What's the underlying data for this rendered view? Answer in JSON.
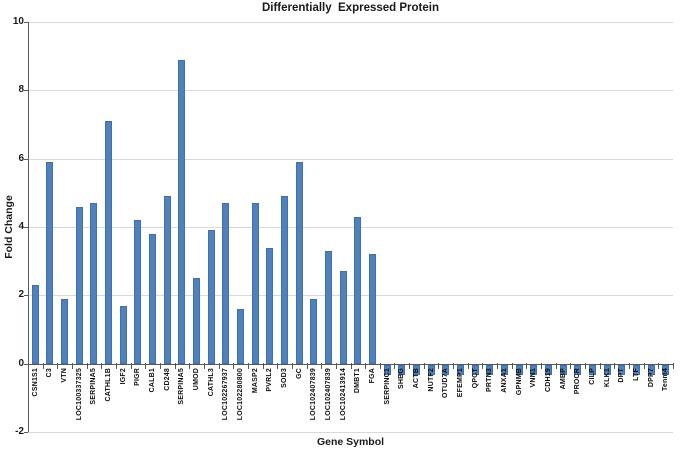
{
  "title": "Differentially  Expressed Protein",
  "colors": {
    "bar": "#4f81bd",
    "gridline": "#d9d9d9",
    "axis": "#595959",
    "text": "#1a1a1a"
  },
  "chart_data": {
    "type": "bar",
    "title": "Differentially  Expressed Protein",
    "xlabel": "Gene Symbol",
    "ylabel": "Fold Change",
    "ylim": [
      -2,
      10
    ],
    "yticks": [
      -2,
      0,
      2,
      4,
      6,
      8,
      10
    ],
    "grid": true,
    "legend": "none",
    "bar_color": "#4f81bd",
    "categories": [
      "CSN1S1",
      "C3",
      "VTN",
      "LOC100337325",
      "SERPINA5",
      "CATHL1B",
      "IGF2",
      "PIGR",
      "CALB1",
      "CD248",
      "SERPINA5",
      "UMOD",
      "CATHL3",
      "LOC102267937",
      "LOC102280800",
      "MASP2",
      "PVRL2",
      "SOD3",
      "GC",
      "LOC102407839",
      "LOC102407839",
      "LOC102413914",
      "DMBT1",
      "FGA",
      "SERPINC1",
      "SHBG",
      "ACTB",
      "NUTF2",
      "OTUD7A",
      "EFEMP1",
      "QPCT",
      "PRTN3",
      "ANXA1",
      "GPNMB",
      "VNN1",
      "CDH19",
      "AMBP",
      "PROCR",
      "CILP",
      "KLK1",
      "DPT",
      "LTF",
      "DPP7",
      "Tenm4"
    ],
    "values": [
      2.3,
      5.9,
      1.9,
      4.6,
      4.7,
      7.1,
      1.7,
      4.2,
      3.8,
      4.9,
      8.9,
      2.5,
      3.9,
      4.7,
      1.6,
      4.7,
      3.4,
      4.9,
      5.9,
      1.9,
      3.3,
      2.7,
      4.3,
      3.2,
      -0.3,
      -0.3,
      -0.3,
      -0.3,
      -0.3,
      -0.3,
      -0.3,
      -0.3,
      -0.3,
      -0.3,
      -0.3,
      -0.3,
      -0.3,
      -0.3,
      -0.3,
      -0.3,
      -0.3,
      -0.3,
      -0.3,
      -0.3
    ]
  }
}
